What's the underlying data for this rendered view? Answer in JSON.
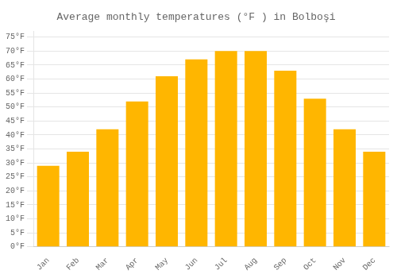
{
  "chart_data": {
    "type": "bar",
    "title": "Average monthly temperatures (°F ) in Bolboşi",
    "categories": [
      "Jan",
      "Feb",
      "Mar",
      "Apr",
      "May",
      "Jun",
      "Jul",
      "Aug",
      "Sep",
      "Oct",
      "Nov",
      "Dec"
    ],
    "values": [
      29,
      34,
      42,
      52,
      61,
      67,
      70,
      70,
      63,
      53,
      42,
      34
    ],
    "color": "#FFB600",
    "ylim": [
      0,
      77
    ],
    "yticks": [
      {
        "value": 0,
        "label": "0°F"
      },
      {
        "value": 5,
        "label": "5°F"
      },
      {
        "value": 10,
        "label": "10°F"
      },
      {
        "value": 15,
        "label": "15°F"
      },
      {
        "value": 20,
        "label": "20°F"
      },
      {
        "value": 25,
        "label": "25°F"
      },
      {
        "value": 30,
        "label": "30°F"
      },
      {
        "value": 35,
        "label": "35°F"
      },
      {
        "value": 40,
        "label": "40°F"
      },
      {
        "value": 45,
        "label": "45°F"
      },
      {
        "value": 50,
        "label": "50°F"
      },
      {
        "value": 55,
        "label": "55°F"
      },
      {
        "value": 60,
        "label": "60°F"
      },
      {
        "value": 65,
        "label": "65°F"
      },
      {
        "value": 70,
        "label": "70°F"
      },
      {
        "value": 75,
        "label": "75°F"
      }
    ],
    "grid": true
  }
}
